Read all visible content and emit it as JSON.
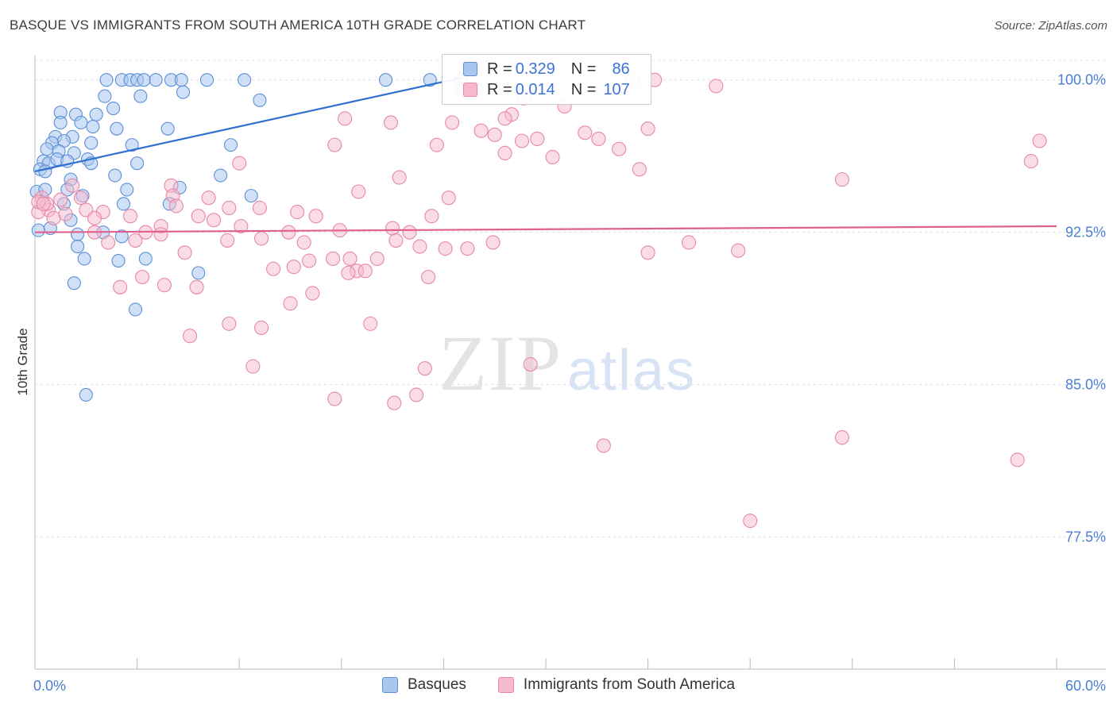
{
  "chart_data": {
    "type": "scatter",
    "title": "BASQUE VS IMMIGRANTS FROM SOUTH AMERICA 10TH GRADE CORRELATION CHART",
    "source": "Source: ZipAtlas.com",
    "xlabel": "",
    "ylabel": "10th Grade",
    "xlim": [
      0,
      60
    ],
    "ylim": [
      71,
      101.2
    ],
    "x_tick_labels": [
      "0.0%",
      "60.0%"
    ],
    "y_ticks": [
      100,
      92.5,
      85,
      77.5
    ],
    "y_tick_labels": [
      "100.0%",
      "92.5%",
      "85.0%",
      "77.5%"
    ],
    "watermark": {
      "zip": "ZIP",
      "atlas": "atlas"
    },
    "legend": {
      "r_label": "R =",
      "n_label": "N =",
      "entries": [
        {
          "name": "Basques",
          "r": "0.329",
          "n": "86"
        },
        {
          "name": "Immigrants from South America",
          "r": "0.014",
          "n": "107"
        }
      ]
    },
    "colors": {
      "basques_fill": "#a9c6ee",
      "basques_stroke": "#5b8fd6",
      "basques_line": "#2f6fd0",
      "immigrants_fill": "#f6b9cd",
      "immigrants_stroke": "#e787a8",
      "immigrants_line": "#e0608d",
      "axis_text": "#4a7fd4"
    },
    "series": [
      {
        "name": "Basques",
        "trend": {
          "x": [
            0,
            25
          ],
          "y": [
            95.5,
            100.1
          ]
        },
        "points": [
          [
            4.2,
            100
          ],
          [
            5.1,
            100
          ],
          [
            5.6,
            100
          ],
          [
            6.0,
            100
          ],
          [
            6.4,
            100
          ],
          [
            7.1,
            100
          ],
          [
            8.0,
            100
          ],
          [
            8.6,
            100
          ],
          [
            10.1,
            100
          ],
          [
            12.3,
            100
          ],
          [
            20.6,
            100
          ],
          [
            23.2,
            100
          ],
          [
            25.0,
            100
          ],
          [
            4.1,
            99.2
          ],
          [
            6.2,
            99.2
          ],
          [
            8.7,
            99.4
          ],
          [
            13.2,
            99.0
          ],
          [
            1.5,
            98.4
          ],
          [
            2.4,
            98.3
          ],
          [
            3.6,
            98.3
          ],
          [
            4.6,
            98.6
          ],
          [
            1.5,
            97.9
          ],
          [
            2.7,
            97.9
          ],
          [
            3.4,
            97.7
          ],
          [
            4.8,
            97.6
          ],
          [
            7.8,
            97.6
          ],
          [
            2.2,
            97.2
          ],
          [
            1.2,
            97.2
          ],
          [
            1.7,
            97.0
          ],
          [
            3.3,
            96.9
          ],
          [
            1.0,
            96.9
          ],
          [
            0.7,
            96.6
          ],
          [
            1.4,
            96.5
          ],
          [
            2.3,
            96.4
          ],
          [
            3.1,
            96.1
          ],
          [
            5.7,
            96.8
          ],
          [
            11.5,
            96.8
          ],
          [
            0.5,
            96.0
          ],
          [
            0.8,
            95.9
          ],
          [
            1.3,
            96.1
          ],
          [
            1.9,
            96.0
          ],
          [
            3.3,
            95.9
          ],
          [
            6.0,
            95.9
          ],
          [
            0.3,
            95.6
          ],
          [
            0.6,
            95.5
          ],
          [
            2.1,
            95.1
          ],
          [
            4.7,
            95.3
          ],
          [
            10.9,
            95.3
          ],
          [
            0.1,
            94.5
          ],
          [
            0.6,
            94.6
          ],
          [
            1.9,
            94.6
          ],
          [
            2.8,
            94.3
          ],
          [
            5.4,
            94.6
          ],
          [
            8.5,
            94.7
          ],
          [
            12.7,
            94.3
          ],
          [
            5.2,
            93.9
          ],
          [
            7.9,
            93.9
          ],
          [
            1.7,
            93.9
          ],
          [
            2.1,
            93.1
          ],
          [
            0.9,
            92.7
          ],
          [
            2.5,
            92.4
          ],
          [
            4.0,
            92.5
          ],
          [
            5.1,
            92.3
          ],
          [
            2.5,
            91.8
          ],
          [
            2.9,
            91.2
          ],
          [
            4.9,
            91.1
          ],
          [
            6.5,
            91.2
          ],
          [
            9.6,
            90.5
          ],
          [
            2.3,
            90.0
          ],
          [
            5.9,
            88.7
          ],
          [
            3.0,
            84.5
          ],
          [
            0.2,
            92.6
          ]
        ]
      },
      {
        "name": "Immigrants from South America",
        "trend": {
          "x": [
            0,
            60
          ],
          "y": [
            92.5,
            92.8
          ]
        },
        "points": [
          [
            35.1,
            100
          ],
          [
            36.4,
            100
          ],
          [
            40.0,
            99.7
          ],
          [
            25.1,
            99.5
          ],
          [
            28.7,
            99.1
          ],
          [
            31.1,
            98.7
          ],
          [
            36.0,
            97.6
          ],
          [
            28.0,
            98.3
          ],
          [
            18.2,
            98.1
          ],
          [
            20.9,
            97.9
          ],
          [
            24.5,
            97.9
          ],
          [
            26.2,
            97.5
          ],
          [
            27.0,
            97.3
          ],
          [
            27.6,
            98.1
          ],
          [
            32.3,
            97.4
          ],
          [
            33.1,
            97.1
          ],
          [
            34.3,
            96.6
          ],
          [
            59.0,
            97.0
          ],
          [
            58.5,
            96.0
          ],
          [
            47.4,
            95.1
          ],
          [
            23.6,
            96.8
          ],
          [
            27.6,
            96.4
          ],
          [
            29.5,
            97.1
          ],
          [
            17.6,
            96.8
          ],
          [
            12.0,
            95.9
          ],
          [
            21.4,
            95.2
          ],
          [
            8.0,
            94.8
          ],
          [
            10.2,
            94.2
          ],
          [
            24.3,
            94.2
          ],
          [
            8.1,
            94.3
          ],
          [
            11.4,
            93.7
          ],
          [
            13.2,
            93.7
          ],
          [
            15.4,
            93.5
          ],
          [
            16.5,
            93.3
          ],
          [
            23.3,
            93.3
          ],
          [
            4.0,
            93.5
          ],
          [
            5.6,
            93.3
          ],
          [
            7.4,
            92.8
          ],
          [
            9.6,
            93.3
          ],
          [
            10.5,
            93.1
          ],
          [
            12.1,
            92.8
          ],
          [
            14.9,
            92.5
          ],
          [
            17.9,
            92.6
          ],
          [
            21.0,
            92.7
          ],
          [
            22.0,
            92.5
          ],
          [
            0.8,
            93.6
          ],
          [
            1.1,
            93.2
          ],
          [
            1.8,
            93.4
          ],
          [
            3.0,
            93.6
          ],
          [
            3.5,
            93.2
          ],
          [
            2.7,
            94.2
          ],
          [
            0.4,
            94.2
          ],
          [
            0.7,
            93.9
          ],
          [
            1.5,
            94.1
          ],
          [
            0.2,
            93.5
          ],
          [
            3.5,
            92.5
          ],
          [
            4.3,
            92.0
          ],
          [
            5.9,
            92.1
          ],
          [
            6.5,
            92.5
          ],
          [
            7.4,
            92.4
          ],
          [
            8.8,
            91.5
          ],
          [
            11.3,
            92.1
          ],
          [
            13.3,
            92.2
          ],
          [
            15.8,
            92.0
          ],
          [
            17.5,
            91.2
          ],
          [
            18.5,
            91.2
          ],
          [
            20.1,
            91.2
          ],
          [
            21.2,
            92.1
          ],
          [
            22.6,
            91.8
          ],
          [
            24.1,
            91.7
          ],
          [
            25.4,
            91.7
          ],
          [
            38.4,
            92.0
          ],
          [
            36.0,
            91.5
          ],
          [
            14.0,
            90.7
          ],
          [
            15.2,
            90.8
          ],
          [
            16.1,
            91.1
          ],
          [
            18.9,
            90.6
          ],
          [
            19.4,
            90.6
          ],
          [
            23.1,
            90.3
          ],
          [
            6.3,
            90.3
          ],
          [
            5.0,
            89.8
          ],
          [
            7.6,
            89.9
          ],
          [
            9.5,
            89.8
          ],
          [
            15.0,
            89.0
          ],
          [
            16.3,
            89.5
          ],
          [
            19.7,
            88.0
          ],
          [
            11.4,
            88.0
          ],
          [
            13.3,
            87.8
          ],
          [
            9.1,
            87.4
          ],
          [
            12.8,
            85.9
          ],
          [
            17.6,
            84.3
          ],
          [
            21.1,
            84.1
          ],
          [
            22.4,
            84.5
          ],
          [
            22.9,
            85.8
          ],
          [
            29.1,
            86.0
          ],
          [
            33.4,
            82.0
          ],
          [
            42.0,
            78.3
          ],
          [
            47.4,
            82.4
          ],
          [
            57.7,
            81.3
          ],
          [
            0.2,
            94.0
          ],
          [
            0.5,
            93.9
          ],
          [
            41.3,
            91.6
          ],
          [
            30.4,
            96.2
          ],
          [
            19.0,
            94.5
          ],
          [
            2.2,
            94.8
          ],
          [
            26.9,
            92.0
          ],
          [
            28.6,
            97.0
          ],
          [
            35.5,
            95.6
          ],
          [
            18.4,
            90.5
          ],
          [
            8.3,
            93.8
          ]
        ]
      }
    ]
  }
}
